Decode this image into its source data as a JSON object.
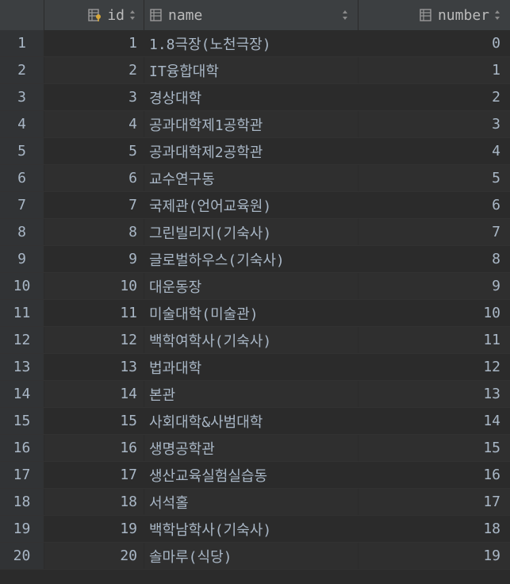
{
  "header": {
    "id_label": "id",
    "name_label": "name",
    "number_label": "number"
  },
  "rows": [
    {
      "rownum": "1",
      "id": "1",
      "name": "1.8극장(노천극장)",
      "number": "0"
    },
    {
      "rownum": "2",
      "id": "2",
      "name": "IT융합대학",
      "number": "1"
    },
    {
      "rownum": "3",
      "id": "3",
      "name": "경상대학",
      "number": "2"
    },
    {
      "rownum": "4",
      "id": "4",
      "name": "공과대학제1공학관",
      "number": "3"
    },
    {
      "rownum": "5",
      "id": "5",
      "name": "공과대학제2공학관",
      "number": "4"
    },
    {
      "rownum": "6",
      "id": "6",
      "name": "교수연구동",
      "number": "5"
    },
    {
      "rownum": "7",
      "id": "7",
      "name": "국제관(언어교육원)",
      "number": "6"
    },
    {
      "rownum": "8",
      "id": "8",
      "name": "그린빌리지(기숙사)",
      "number": "7"
    },
    {
      "rownum": "9",
      "id": "9",
      "name": "글로벌하우스(기숙사)",
      "number": "8"
    },
    {
      "rownum": "10",
      "id": "10",
      "name": "대운동장",
      "number": "9"
    },
    {
      "rownum": "11",
      "id": "11",
      "name": "미술대학(미술관)",
      "number": "10"
    },
    {
      "rownum": "12",
      "id": "12",
      "name": "백학여학사(기숙사)",
      "number": "11"
    },
    {
      "rownum": "13",
      "id": "13",
      "name": "법과대학",
      "number": "12"
    },
    {
      "rownum": "14",
      "id": "14",
      "name": "본관",
      "number": "13"
    },
    {
      "rownum": "15",
      "id": "15",
      "name": "사회대학&사범대학",
      "number": "14"
    },
    {
      "rownum": "16",
      "id": "16",
      "name": "생명공학관",
      "number": "15"
    },
    {
      "rownum": "17",
      "id": "17",
      "name": "생산교육실험실습동",
      "number": "16"
    },
    {
      "rownum": "18",
      "id": "18",
      "name": "서석홀",
      "number": "17"
    },
    {
      "rownum": "19",
      "id": "19",
      "name": "백학남학사(기숙사)",
      "number": "18"
    },
    {
      "rownum": "20",
      "id": "20",
      "name": "솔마루(식당)",
      "number": "19"
    }
  ]
}
